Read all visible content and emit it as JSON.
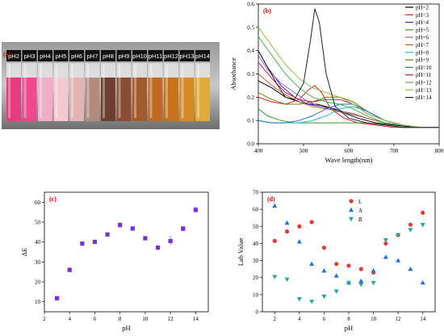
{
  "panel_a": {
    "label": "(a)",
    "vials": [
      {
        "label": "pH2",
        "color": "#e83a7e"
      },
      {
        "label": "pH3",
        "color": "#ec4a8c"
      },
      {
        "label": "pH4",
        "color": "#f0aec6"
      },
      {
        "label": "pH5",
        "color": "#f3c8d2"
      },
      {
        "label": "pH6",
        "color": "#e2b3b5"
      },
      {
        "label": "pH7",
        "color": "#b38a80"
      },
      {
        "label": "pH8",
        "color": "#6e3e2e"
      },
      {
        "label": "pH9",
        "color": "#8a4e36"
      },
      {
        "label": "pH10",
        "color": "#a25a2a"
      },
      {
        "label": "pH11",
        "color": "#c06a22"
      },
      {
        "label": "pH12",
        "color": "#c8721e"
      },
      {
        "label": "pH13",
        "color": "#d48a26"
      },
      {
        "label": "pH14",
        "color": "#e2a83a"
      }
    ]
  },
  "chart_data": [
    {
      "id": "b",
      "label": "(b)",
      "type": "line",
      "xlabel": "Wave length(nm)",
      "ylabel": "Absorbance",
      "xlim": [
        400,
        800
      ],
      "ylim": [
        0,
        0.6
      ],
      "xticks": [
        400,
        500,
        600,
        700,
        800
      ],
      "yticks": [
        0.0,
        0.1,
        0.2,
        0.3,
        0.4,
        0.5,
        0.6
      ],
      "legend_position": "top-right",
      "series": [
        {
          "name": "pH=2",
          "color": "#000000",
          "x": [
            400,
            430,
            460,
            490,
            510,
            530,
            550,
            580,
            620,
            660,
            700,
            750,
            800
          ],
          "y": [
            0.27,
            0.24,
            0.2,
            0.18,
            0.17,
            0.17,
            0.16,
            0.14,
            0.11,
            0.09,
            0.08,
            0.07,
            0.07
          ]
        },
        {
          "name": "pH=3",
          "color": "#e41a1c",
          "x": [
            400,
            430,
            460,
            490,
            510,
            525,
            540,
            560,
            590,
            620,
            660,
            700,
            750,
            800
          ],
          "y": [
            0.2,
            0.18,
            0.17,
            0.19,
            0.23,
            0.25,
            0.22,
            0.15,
            0.11,
            0.09,
            0.08,
            0.07,
            0.07,
            0.07
          ]
        },
        {
          "name": "pH=4",
          "color": "#3030c8",
          "x": [
            400,
            420,
            450,
            480,
            510,
            540,
            570,
            600,
            640,
            680,
            720,
            760,
            800
          ],
          "y": [
            0.4,
            0.33,
            0.25,
            0.2,
            0.17,
            0.16,
            0.15,
            0.13,
            0.11,
            0.09,
            0.08,
            0.07,
            0.07
          ]
        },
        {
          "name": "pH=5",
          "color": "#2ca02c",
          "x": [
            400,
            420,
            450,
            480,
            510,
            540,
            570,
            600,
            640,
            680,
            720,
            760,
            800
          ],
          "y": [
            0.15,
            0.12,
            0.1,
            0.09,
            0.09,
            0.09,
            0.09,
            0.09,
            0.09,
            0.08,
            0.07,
            0.07,
            0.07
          ]
        },
        {
          "name": "pH=6",
          "color": "#9467bd",
          "x": [
            400,
            420,
            450,
            480,
            510,
            540,
            570,
            600,
            640,
            680,
            720,
            760,
            800
          ],
          "y": [
            0.38,
            0.32,
            0.26,
            0.22,
            0.18,
            0.16,
            0.14,
            0.13,
            0.11,
            0.09,
            0.08,
            0.07,
            0.07
          ]
        },
        {
          "name": "pH=7",
          "color": "#b5651d",
          "x": [
            400,
            430,
            460,
            490,
            520,
            550,
            580,
            610,
            640,
            680,
            720,
            760,
            800
          ],
          "y": [
            0.3,
            0.25,
            0.21,
            0.18,
            0.16,
            0.15,
            0.14,
            0.13,
            0.11,
            0.09,
            0.08,
            0.07,
            0.07
          ]
        },
        {
          "name": "pH=8",
          "color": "#17becf",
          "x": [
            400,
            430,
            460,
            490,
            520,
            550,
            580,
            610,
            640,
            680,
            720,
            760,
            800
          ],
          "y": [
            0.1,
            0.09,
            0.09,
            0.09,
            0.1,
            0.12,
            0.15,
            0.16,
            0.14,
            0.1,
            0.08,
            0.07,
            0.07
          ]
        },
        {
          "name": "pH=9",
          "color": "#7a7a00",
          "x": [
            400,
            430,
            460,
            490,
            520,
            550,
            580,
            610,
            640,
            680,
            720,
            760,
            800
          ],
          "y": [
            0.22,
            0.19,
            0.17,
            0.17,
            0.18,
            0.2,
            0.2,
            0.18,
            0.14,
            0.1,
            0.08,
            0.07,
            0.07
          ]
        },
        {
          "name": "pH=10",
          "color": "#1f77b4",
          "x": [
            400,
            430,
            460,
            490,
            520,
            550,
            580,
            610,
            640,
            680,
            720,
            760,
            800
          ],
          "y": [
            0.1,
            0.09,
            0.09,
            0.1,
            0.12,
            0.15,
            0.17,
            0.17,
            0.14,
            0.1,
            0.08,
            0.07,
            0.07
          ]
        },
        {
          "name": "pH=11",
          "color": "#c2185b",
          "x": [
            400,
            430,
            460,
            490,
            520,
            550,
            580,
            610,
            640,
            680,
            720,
            760,
            800
          ],
          "y": [
            0.35,
            0.28,
            0.22,
            0.19,
            0.18,
            0.19,
            0.19,
            0.17,
            0.13,
            0.1,
            0.08,
            0.07,
            0.07
          ]
        },
        {
          "name": "pH=12",
          "color": "#4caf50",
          "x": [
            400,
            430,
            460,
            490,
            520,
            550,
            580,
            610,
            640,
            680,
            720,
            760,
            800
          ],
          "y": [
            0.46,
            0.38,
            0.3,
            0.24,
            0.2,
            0.18,
            0.17,
            0.15,
            0.12,
            0.09,
            0.08,
            0.07,
            0.07
          ]
        },
        {
          "name": "pH=13",
          "color": "#8bc34a",
          "x": [
            400,
            430,
            460,
            490,
            520,
            550,
            580,
            610,
            640,
            680,
            720,
            760,
            800
          ],
          "y": [
            0.5,
            0.42,
            0.34,
            0.28,
            0.24,
            0.22,
            0.2,
            0.17,
            0.13,
            0.1,
            0.08,
            0.07,
            0.07
          ]
        },
        {
          "name": "pH=14",
          "color": "#222222",
          "x": [
            400,
            420,
            440,
            460,
            480,
            500,
            515,
            525,
            535,
            550,
            570,
            600,
            640,
            680,
            720,
            760,
            800
          ],
          "y": [
            0.4,
            0.33,
            0.26,
            0.2,
            0.19,
            0.26,
            0.44,
            0.58,
            0.52,
            0.3,
            0.16,
            0.11,
            0.09,
            0.08,
            0.07,
            0.07,
            0.07
          ]
        }
      ]
    },
    {
      "id": "c",
      "label": "(c)",
      "type": "scatter",
      "xlabel": "pH",
      "ylabel": "ΔE",
      "xlim": [
        2,
        15
      ],
      "ylim": [
        5,
        65
      ],
      "xticks": [
        2,
        4,
        6,
        8,
        10,
        12,
        14
      ],
      "yticks": [
        10,
        20,
        30,
        40,
        50,
        60
      ],
      "series": [
        {
          "color": "#7a2fd0",
          "marker": "square",
          "x": [
            3,
            4,
            5,
            6,
            7,
            8,
            9,
            10,
            11,
            12,
            13,
            14
          ],
          "y": [
            11.8,
            26,
            39.2,
            40.1,
            43.8,
            48.5,
            46.8,
            41.9,
            37.2,
            40.5,
            46.7,
            56.1
          ],
          "err": [
            0.8,
            1.0,
            0.7,
            0.6,
            0.8,
            1.1,
            0.7,
            0.6,
            0.6,
            2.2,
            1.2,
            1.3
          ]
        }
      ]
    },
    {
      "id": "d",
      "label": "(d)",
      "type": "scatter",
      "xlabel": "pH",
      "ylabel": "Lab Value",
      "xlim": [
        1,
        15
      ],
      "ylim": [
        0,
        70
      ],
      "xticks": [
        2,
        4,
        6,
        8,
        10,
        12,
        14
      ],
      "yticks": [
        0,
        10,
        20,
        30,
        40,
        50,
        60,
        70
      ],
      "legend_position": "top-center",
      "series": [
        {
          "name": "L",
          "color": "#e53935",
          "marker": "circle",
          "x": [
            2,
            3,
            4,
            5,
            6,
            7,
            8,
            9,
            10,
            11,
            12,
            13,
            14
          ],
          "y": [
            41.5,
            47,
            50,
            52.5,
            37.5,
            28,
            27,
            25,
            23,
            40,
            45,
            51,
            58
          ]
        },
        {
          "name": "A",
          "color": "#1e73d8",
          "marker": "triangle-up",
          "x": [
            2,
            3,
            4,
            5,
            6,
            7,
            8,
            9,
            10,
            11,
            12,
            13,
            14
          ],
          "y": [
            62,
            52,
            41,
            28,
            24,
            21,
            17,
            18,
            24,
            32,
            30,
            25,
            17
          ]
        },
        {
          "name": "B",
          "color": "#26a69a",
          "marker": "triangle-down",
          "x": [
            2,
            3,
            4,
            5,
            6,
            7,
            8,
            9,
            10,
            11,
            12,
            13,
            14
          ],
          "y": [
            20.5,
            19,
            7.5,
            6,
            9,
            12,
            17,
            16,
            17,
            42,
            45,
            48,
            51
          ]
        }
      ]
    }
  ]
}
